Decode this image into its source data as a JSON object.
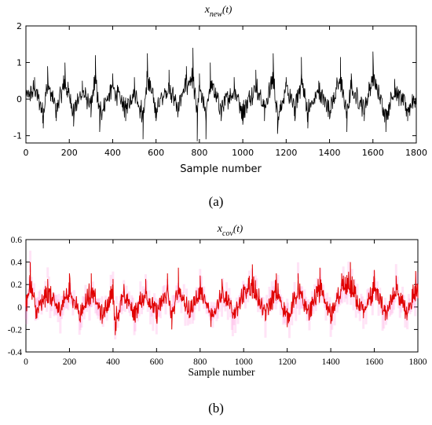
{
  "chart_data": [
    {
      "type": "line",
      "panel_label": "(a)",
      "title_main": "x",
      "title_sub": "new",
      "title_tail": "(t)",
      "xlabel": "Sample number",
      "ylabel": "",
      "xlim": [
        0,
        1800
      ],
      "ylim": [
        -1.2,
        2
      ],
      "xticks": [
        0,
        200,
        400,
        600,
        800,
        1000,
        1200,
        1400,
        1600,
        1800
      ],
      "yticks": [
        -1,
        0,
        1,
        2
      ],
      "grid": false,
      "line_color": "#000000",
      "series": [
        {
          "x": [
            0,
            40,
            80,
            100,
            140,
            180,
            220,
            260,
            300,
            320,
            340,
            400,
            460,
            500,
            540,
            560,
            600,
            660,
            700,
            740,
            770,
            790,
            800,
            830,
            850,
            900,
            960,
            1000,
            1060,
            1100,
            1140,
            1160,
            1200,
            1240,
            1270,
            1300,
            1350,
            1400,
            1450,
            1480,
            1500,
            1560,
            1600,
            1660,
            1700,
            1760,
            1800
          ],
          "y": [
            0.05,
            0.6,
            -0.8,
            0.9,
            -0.6,
            1.0,
            -0.75,
            0.5,
            -0.5,
            1.2,
            -0.9,
            0.7,
            -0.6,
            0.6,
            -1.1,
            1.25,
            -0.6,
            0.8,
            -0.5,
            0.9,
            1.4,
            -1.15,
            0.7,
            -1.1,
            1.0,
            -0.6,
            0.6,
            -0.7,
            0.8,
            -0.6,
            1.25,
            -0.95,
            0.6,
            -0.6,
            1.15,
            -0.8,
            0.5,
            -0.55,
            1.15,
            -0.9,
            0.7,
            -0.6,
            1.3,
            -0.9,
            0.55,
            -0.6,
            0.1
          ]
        }
      ]
    },
    {
      "type": "line",
      "panel_label": "(b)",
      "title_main": "x",
      "title_sub": "cov",
      "title_tail": "(t)",
      "xlabel": "Sample number",
      "ylabel": "",
      "xlim": [
        0,
        1800
      ],
      "ylim": [
        -0.4,
        0.6
      ],
      "xticks": [
        0,
        200,
        400,
        600,
        800,
        1000,
        1200,
        1400,
        1600,
        1800
      ],
      "yticks": [
        -0.4,
        -0.2,
        0,
        0.2,
        0.4,
        0.6
      ],
      "grid": false,
      "line_color": "#e00000",
      "band_color": "#ff66cc",
      "series": [
        {
          "x": [
            0,
            20,
            50,
            100,
            150,
            200,
            250,
            300,
            350,
            400,
            410,
            450,
            500,
            550,
            600,
            650,
            670,
            700,
            750,
            800,
            850,
            900,
            950,
            1000,
            1040,
            1100,
            1150,
            1200,
            1250,
            1300,
            1350,
            1400,
            1450,
            1490,
            1550,
            1600,
            1650,
            1700,
            1750,
            1790,
            1800
          ],
          "y": [
            0.05,
            0.4,
            -0.1,
            0.25,
            -0.05,
            0.3,
            -0.12,
            0.3,
            -0.15,
            0.25,
            -0.25,
            0.2,
            -0.1,
            0.25,
            -0.12,
            0.3,
            -0.2,
            0.35,
            -0.1,
            0.28,
            -0.15,
            0.25,
            -0.1,
            0.2,
            0.38,
            -0.12,
            0.3,
            -0.18,
            0.3,
            -0.12,
            0.35,
            -0.15,
            0.3,
            0.4,
            -0.1,
            0.33,
            -0.12,
            0.28,
            -0.1,
            0.32,
            0.2
          ]
        }
      ]
    }
  ]
}
